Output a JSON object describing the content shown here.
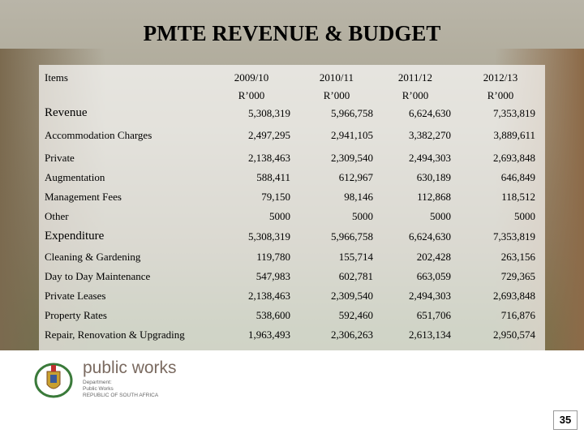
{
  "header": {
    "title": "PMTE REVENUE & BUDGET"
  },
  "table": {
    "columns": [
      {
        "label": "Items"
      },
      {
        "label": "2009/10",
        "unit": "R’000"
      },
      {
        "label": "2010/11",
        "unit": "R’000"
      },
      {
        "label": "2011/12",
        "unit": "R’000"
      },
      {
        "label": "2012/13",
        "unit": "R’000"
      }
    ],
    "rows": [
      [
        "Revenue",
        "5,308,319",
        "5,966,758",
        "6,624,630",
        "7,353,819"
      ],
      [
        "Accommodation Charges",
        "2,497,295",
        "2,941,105",
        "3,382,270",
        "3,889,611"
      ],
      [
        "Private",
        "2,138,463",
        "2,309,540",
        "2,494,303",
        "2,693,848"
      ],
      [
        "Augmentation",
        "588,411",
        "612,967",
        "630,189",
        "646,849"
      ],
      [
        "Management Fees",
        "79,150",
        "98,146",
        "112,868",
        "118,512"
      ],
      [
        "Other",
        "5000",
        "5000",
        "5000",
        "5000"
      ],
      [
        "Expenditure",
        "5,308,319",
        "5,966,758",
        "6,624,630",
        "7,353,819"
      ],
      [
        "Cleaning & Gardening",
        "119,780",
        "155,714",
        "202,428",
        "263,156"
      ],
      [
        "Day to Day Maintenance",
        "547,983",
        "602,781",
        "663,059",
        "729,365"
      ],
      [
        "Private Leases",
        "2,138,463",
        "2,309,540",
        "2,494,303",
        "2,693,848"
      ],
      [
        "Property Rates",
        "538,600",
        "592,460",
        "651,706",
        "716,876"
      ],
      [
        "Repair, Renovation & Upgrading",
        "1,963,493",
        "2,306,263",
        "2,613,134",
        "2,950,574"
      ]
    ]
  },
  "logo": {
    "name": "public works",
    "line1": "Department:",
    "line2": "Public Works",
    "line3": "REPUBLIC OF SOUTH AFRICA"
  },
  "footer": {
    "page": "35"
  }
}
